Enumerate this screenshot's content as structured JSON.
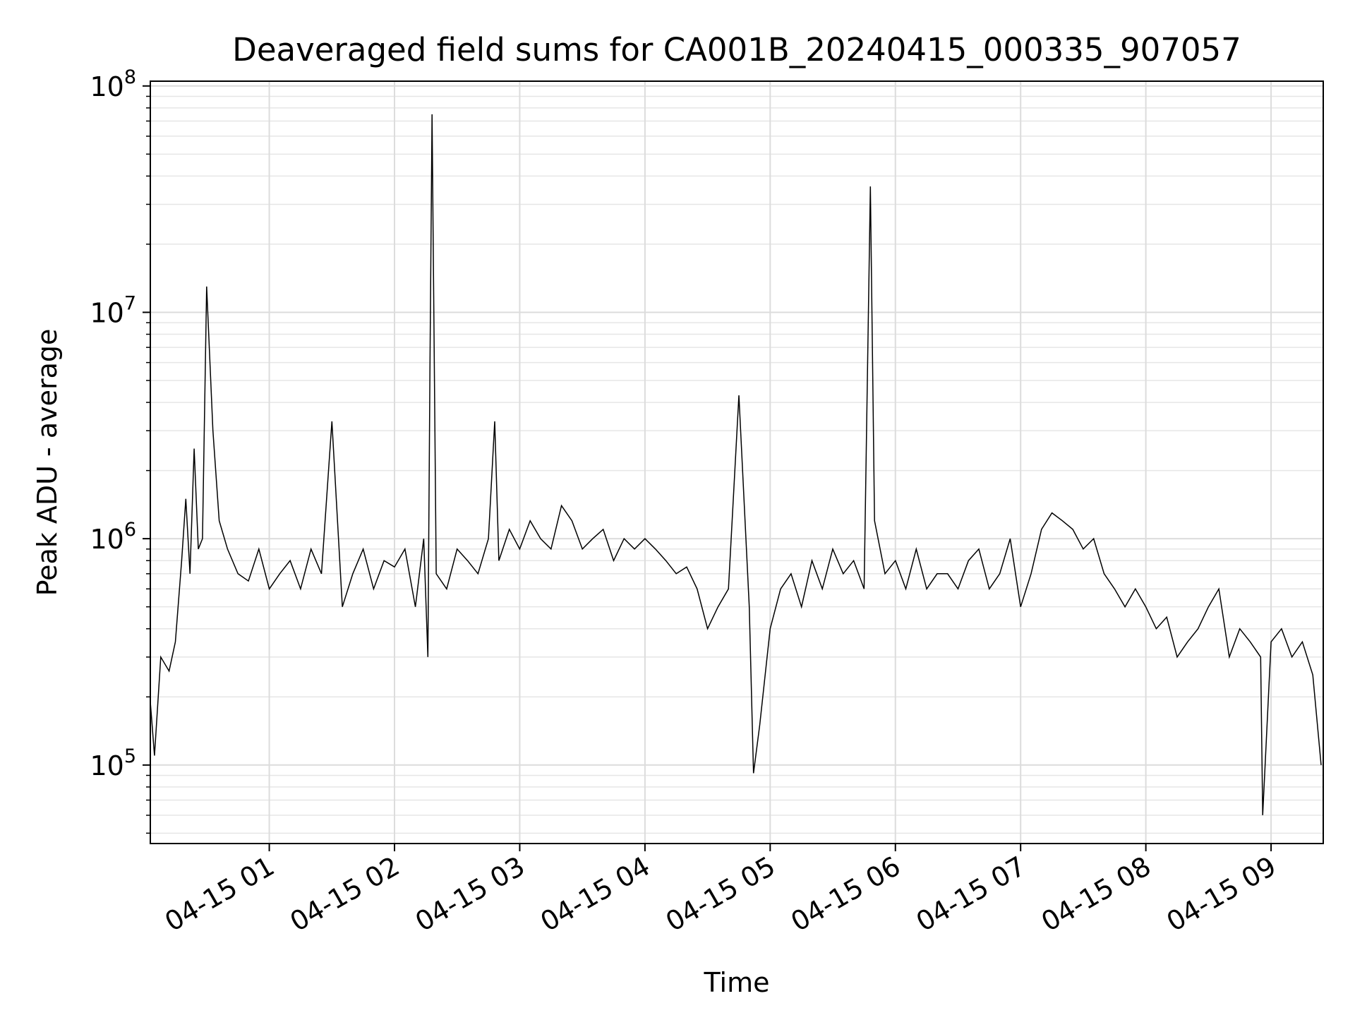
{
  "chart_data": {
    "type": "line",
    "title": "Deaveraged field sums for CA001B_20240415_000335_907057",
    "xlabel": "Time",
    "ylabel": "Peak ADU - average",
    "yscale": "log",
    "grid": true,
    "grid_minor_y": true,
    "xlim": [
      "2024-04-15 00:03",
      "2024-04-15 09:25"
    ],
    "ylim": [
      45000,
      105000000
    ],
    "x_ticks": [
      "04-15 01",
      "04-15 02",
      "04-15 03",
      "04-15 04",
      "04-15 05",
      "04-15 06",
      "04-15 07",
      "04-15 08",
      "04-15 09"
    ],
    "y_ticks": [
      {
        "base": "10",
        "exp": "5"
      },
      {
        "base": "10",
        "exp": "6"
      },
      {
        "base": "10",
        "exp": "7"
      },
      {
        "base": "10",
        "exp": "8"
      }
    ],
    "series": [
      {
        "color": "#000000",
        "x": [
          "2024-04-15 00:03",
          "2024-04-15 00:05",
          "2024-04-15 00:08",
          "2024-04-15 00:12",
          "2024-04-15 00:15",
          "2024-04-15 00:18",
          "2024-04-15 00:20",
          "2024-04-15 00:22",
          "2024-04-15 00:24",
          "2024-04-15 00:26",
          "2024-04-15 00:28",
          "2024-04-15 00:30",
          "2024-04-15 00:33",
          "2024-04-15 00:36",
          "2024-04-15 00:40",
          "2024-04-15 00:45",
          "2024-04-15 00:50",
          "2024-04-15 00:55",
          "2024-04-15 01:00",
          "2024-04-15 01:05",
          "2024-04-15 01:10",
          "2024-04-15 01:15",
          "2024-04-15 01:20",
          "2024-04-15 01:25",
          "2024-04-15 01:30",
          "2024-04-15 01:35",
          "2024-04-15 01:40",
          "2024-04-15 01:45",
          "2024-04-15 01:50",
          "2024-04-15 01:55",
          "2024-04-15 02:00",
          "2024-04-15 02:05",
          "2024-04-15 02:10",
          "2024-04-15 02:14",
          "2024-04-15 02:16",
          "2024-04-15 02:17",
          "2024-04-15 02:18",
          "2024-04-15 02:20",
          "2024-04-15 02:25",
          "2024-04-15 02:30",
          "2024-04-15 02:35",
          "2024-04-15 02:40",
          "2024-04-15 02:45",
          "2024-04-15 02:48",
          "2024-04-15 02:50",
          "2024-04-15 02:55",
          "2024-04-15 03:00",
          "2024-04-15 03:05",
          "2024-04-15 03:10",
          "2024-04-15 03:15",
          "2024-04-15 03:20",
          "2024-04-15 03:25",
          "2024-04-15 03:30",
          "2024-04-15 03:35",
          "2024-04-15 03:40",
          "2024-04-15 03:45",
          "2024-04-15 03:50",
          "2024-04-15 03:55",
          "2024-04-15 04:00",
          "2024-04-15 04:05",
          "2024-04-15 04:10",
          "2024-04-15 04:15",
          "2024-04-15 04:20",
          "2024-04-15 04:25",
          "2024-04-15 04:30",
          "2024-04-15 04:35",
          "2024-04-15 04:40",
          "2024-04-15 04:45",
          "2024-04-15 04:50",
          "2024-04-15 04:52",
          "2024-04-15 04:55",
          "2024-04-15 05:00",
          "2024-04-15 05:05",
          "2024-04-15 05:10",
          "2024-04-15 05:15",
          "2024-04-15 05:20",
          "2024-04-15 05:25",
          "2024-04-15 05:30",
          "2024-04-15 05:35",
          "2024-04-15 05:40",
          "2024-04-15 05:45",
          "2024-04-15 05:48",
          "2024-04-15 05:50",
          "2024-04-15 05:55",
          "2024-04-15 06:00",
          "2024-04-15 06:05",
          "2024-04-15 06:10",
          "2024-04-15 06:15",
          "2024-04-15 06:20",
          "2024-04-15 06:25",
          "2024-04-15 06:30",
          "2024-04-15 06:35",
          "2024-04-15 06:40",
          "2024-04-15 06:45",
          "2024-04-15 06:50",
          "2024-04-15 06:55",
          "2024-04-15 07:00",
          "2024-04-15 07:05",
          "2024-04-15 07:10",
          "2024-04-15 07:15",
          "2024-04-15 07:20",
          "2024-04-15 07:25",
          "2024-04-15 07:30",
          "2024-04-15 07:35",
          "2024-04-15 07:40",
          "2024-04-15 07:45",
          "2024-04-15 07:50",
          "2024-04-15 07:55",
          "2024-04-15 08:00",
          "2024-04-15 08:05",
          "2024-04-15 08:10",
          "2024-04-15 08:15",
          "2024-04-15 08:20",
          "2024-04-15 08:25",
          "2024-04-15 08:30",
          "2024-04-15 08:35",
          "2024-04-15 08:40",
          "2024-04-15 08:45",
          "2024-04-15 08:50",
          "2024-04-15 08:55",
          "2024-04-15 08:56",
          "2024-04-15 09:00",
          "2024-04-15 09:05",
          "2024-04-15 09:10",
          "2024-04-15 09:15",
          "2024-04-15 09:20",
          "2024-04-15 09:24"
        ],
        "values": [
          190000,
          110000,
          300000,
          260000,
          350000,
          800000,
          1500000,
          700000,
          2500000,
          900000,
          1000000,
          13000000,
          3000000,
          1200000,
          900000,
          700000,
          650000,
          900000,
          600000,
          700000,
          800000,
          600000,
          900000,
          700000,
          3300000,
          500000,
          700000,
          900000,
          600000,
          800000,
          750000,
          900000,
          500000,
          1000000,
          300000,
          6000000,
          75000000,
          700000,
          600000,
          900000,
          800000,
          700000,
          1000000,
          3300000,
          800000,
          1100000,
          900000,
          1200000,
          1000000,
          900000,
          1400000,
          1200000,
          900000,
          1000000,
          1100000,
          800000,
          1000000,
          900000,
          1000000,
          900000,
          800000,
          700000,
          750000,
          600000,
          400000,
          500000,
          600000,
          4300000,
          500000,
          92000,
          150000,
          400000,
          600000,
          700000,
          500000,
          800000,
          600000,
          900000,
          700000,
          800000,
          600000,
          36000000,
          1200000,
          700000,
          800000,
          600000,
          900000,
          600000,
          700000,
          700000,
          600000,
          800000,
          900000,
          600000,
          700000,
          1000000,
          500000,
          700000,
          1100000,
          1300000,
          1200000,
          1100000,
          900000,
          1000000,
          700000,
          600000,
          500000,
          600000,
          500000,
          400000,
          450000,
          300000,
          350000,
          400000,
          500000,
          600000,
          300000,
          400000,
          350000,
          300000,
          60000,
          350000,
          400000,
          300000,
          350000,
          250000,
          100000
        ]
      }
    ]
  }
}
